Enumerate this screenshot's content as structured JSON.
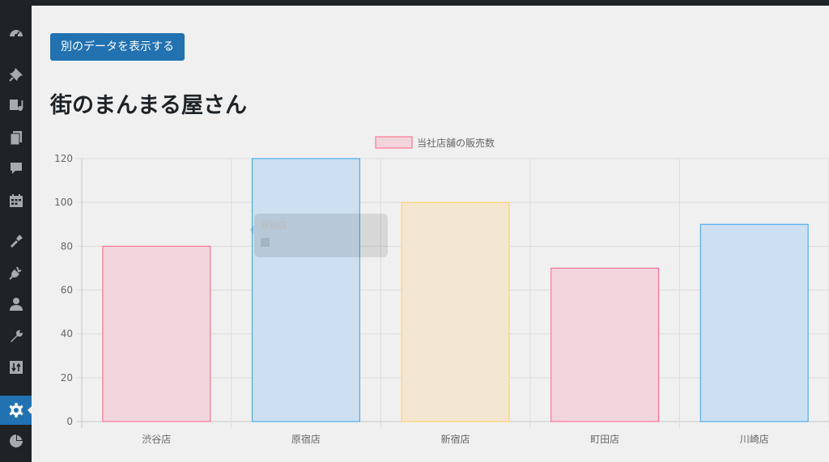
{
  "button": {
    "label": "別のデータを表示する"
  },
  "page": {
    "title": "街のまんまる屋さん"
  },
  "sidebar": {
    "icons": [
      "dashboard-icon",
      "pin-icon",
      "media-icon",
      "pages-icon",
      "comments-icon",
      "calendar-icon",
      "appearance-icon",
      "plugins-icon",
      "users-icon",
      "tools-icon",
      "import-export-icon",
      "settings-icon",
      "chart-pie-icon"
    ],
    "active": "settings-icon"
  },
  "tooltip": {
    "title": "原宿店",
    "body": ""
  },
  "colors": {
    "pink_fill": "#f2d4dc",
    "pink_border": "#ff6384",
    "blue_fill": "#cce0f2",
    "blue_border": "#36a2eb",
    "yellow_fill": "#f3e6d1",
    "yellow_border": "#ffce56",
    "accent": "#2271b1"
  },
  "chart_data": {
    "type": "bar",
    "categories": [
      "渋谷店",
      "原宿店",
      "新宿店",
      "町田店",
      "川崎店"
    ],
    "series": [
      {
        "name": "当社店舗の販売数",
        "values": [
          80,
          120,
          100,
          70,
          90
        ]
      }
    ],
    "bar_colors": [
      "pink",
      "blue",
      "yellow",
      "pink",
      "blue"
    ],
    "ylim": [
      0,
      120
    ],
    "yticks": [
      0,
      20,
      40,
      60,
      80,
      100,
      120
    ],
    "grid": true,
    "legend": "top-center"
  }
}
